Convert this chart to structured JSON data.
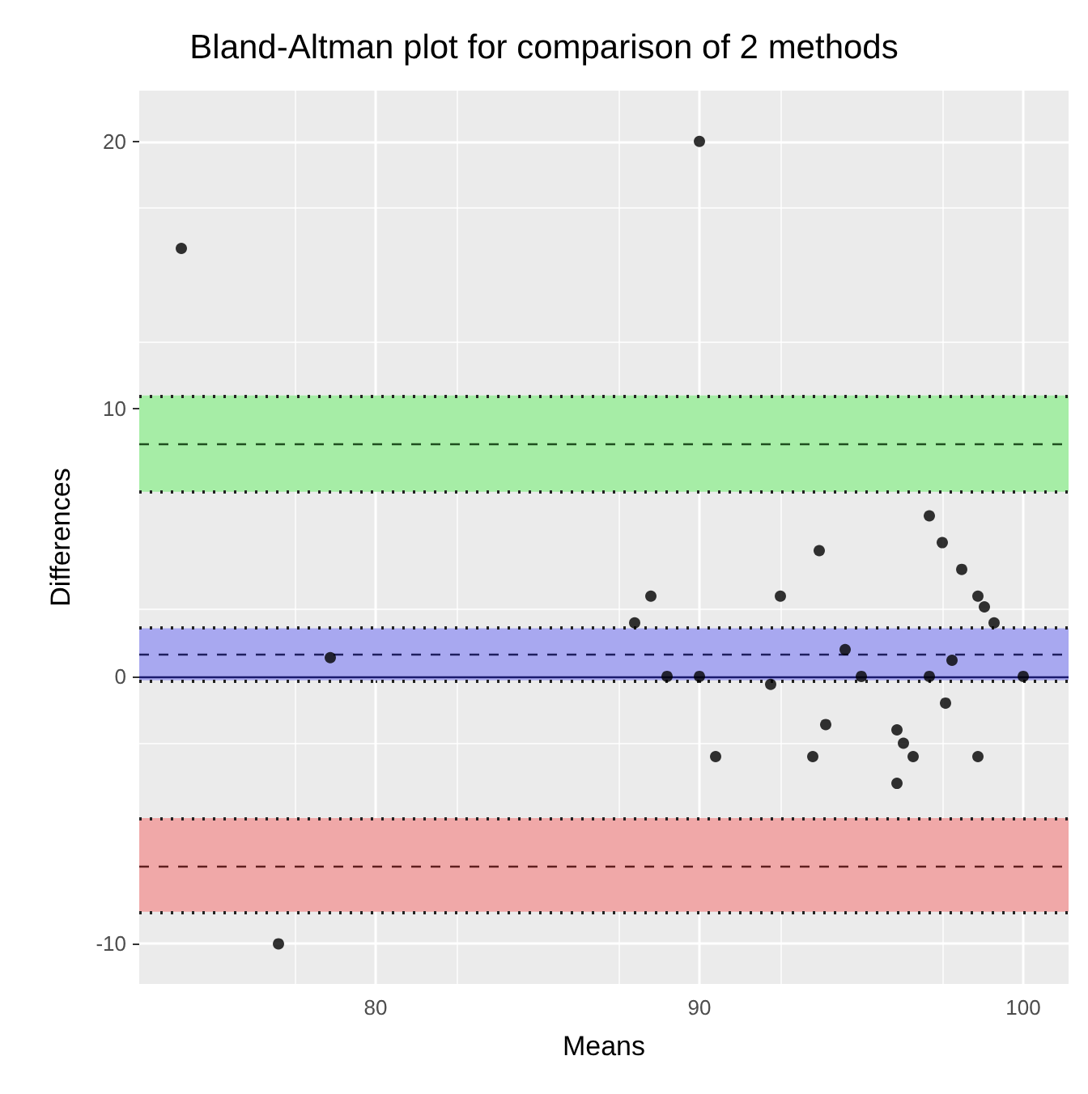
{
  "chart_data": {
    "type": "scatter",
    "title": "Bland-Altman plot for comparison of 2 methods",
    "xlabel": "Means",
    "ylabel": "Differences",
    "x": [
      74,
      78.6,
      77,
      90,
      97.1,
      97.5,
      98.1,
      98.6,
      98.8,
      93.7,
      88.5,
      92.5,
      99.1,
      88,
      94.5,
      97.8,
      89,
      90,
      95,
      97.1,
      100,
      92.2,
      97.6,
      93.9,
      90.5,
      93.5,
      96.1,
      96.3,
      96.6,
      98.6,
      96.1
    ],
    "values": [
      16,
      0.7,
      -10,
      20,
      6,
      5,
      4,
      3,
      2.6,
      4.7,
      3,
      3,
      2,
      2,
      1,
      0.6,
      0,
      0,
      0,
      0,
      0,
      -0.3,
      -1,
      -1.8,
      -3,
      -3,
      -2,
      -2.5,
      -3,
      -3,
      -4
    ],
    "color": "#000000",
    "marker": "circle",
    "xlim": [
      72.7,
      101.4
    ],
    "xticks": [
      80,
      90,
      100
    ],
    "ylim": [
      -11.5,
      21.9
    ],
    "yticks": [
      -10,
      0,
      10,
      20
    ],
    "grid": true,
    "bands": [
      {
        "axis": "y",
        "from": 6.9,
        "to": 10.5,
        "color": "#a6eda6"
      },
      {
        "axis": "y",
        "from": -0.15,
        "to": 1.8,
        "color": "#a8a8f0"
      },
      {
        "axis": "y",
        "from": -8.8,
        "to": -5.3,
        "color": "#f0a8a8"
      }
    ],
    "ref_lines": [
      {
        "axis": "y",
        "value": 10.5,
        "color": "#222222",
        "line_style": "dotted"
      },
      {
        "axis": "y",
        "value": 8.7,
        "color": "#1f4f1f",
        "line_style": "dashed"
      },
      {
        "axis": "y",
        "value": 6.9,
        "color": "#222222",
        "line_style": "dotted"
      },
      {
        "axis": "y",
        "value": 1.8,
        "color": "#222222",
        "line_style": "dotted"
      },
      {
        "axis": "y",
        "value": 0.8,
        "color": "#1f1f5f",
        "line_style": "dashed"
      },
      {
        "axis": "y",
        "value": 0,
        "color": "#1a1a6e",
        "line_style": "solid"
      },
      {
        "axis": "y",
        "value": -0.15,
        "color": "#222222",
        "line_style": "dotted"
      },
      {
        "axis": "y",
        "value": -5.3,
        "color": "#222222",
        "line_style": "dotted"
      },
      {
        "axis": "y",
        "value": -7.1,
        "color": "#5f1f1f",
        "line_style": "dashed"
      },
      {
        "axis": "y",
        "value": -8.8,
        "color": "#222222",
        "line_style": "dotted"
      }
    ]
  }
}
